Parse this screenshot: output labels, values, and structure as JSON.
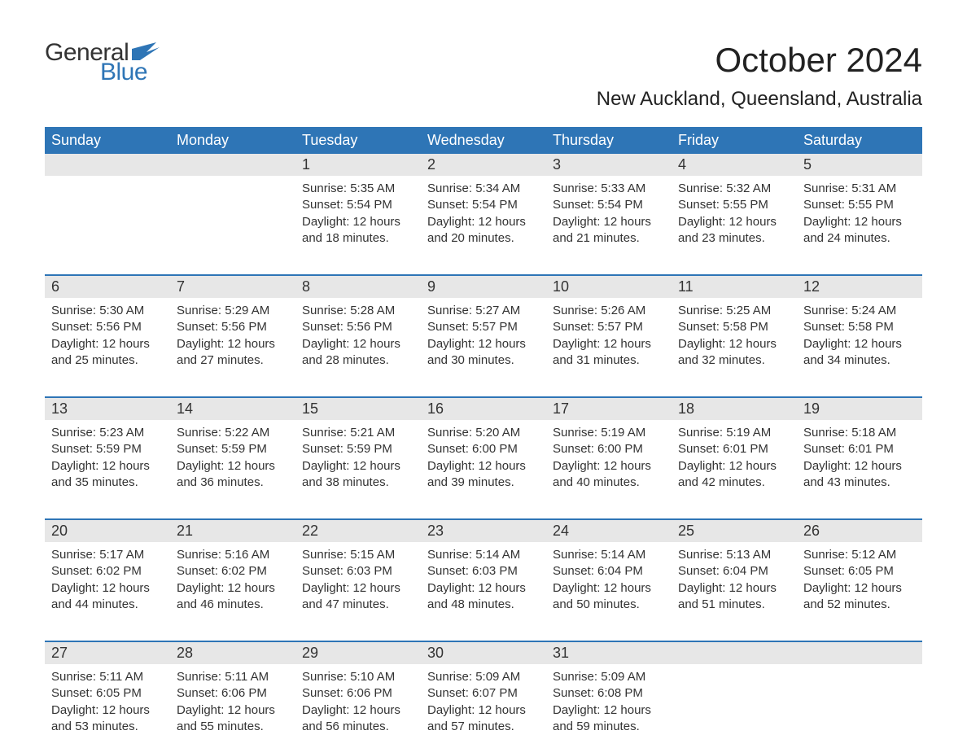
{
  "logo": {
    "word1": "General",
    "word2": "Blue",
    "word1_color": "#333333",
    "word2_color": "#2e75b6"
  },
  "title": "October 2024",
  "location": "New Auckland, Queensland, Australia",
  "colors": {
    "header_bg": "#2e75b6",
    "header_text": "#ffffff",
    "daynum_bg": "#e7e7e7",
    "week_border": "#2e75b6",
    "body_text": "#333333",
    "page_bg": "#ffffff"
  },
  "fonts": {
    "title_size_pt": 32,
    "location_size_pt": 18,
    "weekday_size_pt": 14,
    "body_size_pt": 11
  },
  "weekdays": [
    "Sunday",
    "Monday",
    "Tuesday",
    "Wednesday",
    "Thursday",
    "Friday",
    "Saturday"
  ],
  "weeks": [
    [
      {
        "empty": true
      },
      {
        "empty": true
      },
      {
        "num": "1",
        "sunrise": "Sunrise: 5:35 AM",
        "sunset": "Sunset: 5:54 PM",
        "daylight": "Daylight: 12 hours and 18 minutes."
      },
      {
        "num": "2",
        "sunrise": "Sunrise: 5:34 AM",
        "sunset": "Sunset: 5:54 PM",
        "daylight": "Daylight: 12 hours and 20 minutes."
      },
      {
        "num": "3",
        "sunrise": "Sunrise: 5:33 AM",
        "sunset": "Sunset: 5:54 PM",
        "daylight": "Daylight: 12 hours and 21 minutes."
      },
      {
        "num": "4",
        "sunrise": "Sunrise: 5:32 AM",
        "sunset": "Sunset: 5:55 PM",
        "daylight": "Daylight: 12 hours and 23 minutes."
      },
      {
        "num": "5",
        "sunrise": "Sunrise: 5:31 AM",
        "sunset": "Sunset: 5:55 PM",
        "daylight": "Daylight: 12 hours and 24 minutes."
      }
    ],
    [
      {
        "num": "6",
        "sunrise": "Sunrise: 5:30 AM",
        "sunset": "Sunset: 5:56 PM",
        "daylight": "Daylight: 12 hours and 25 minutes."
      },
      {
        "num": "7",
        "sunrise": "Sunrise: 5:29 AM",
        "sunset": "Sunset: 5:56 PM",
        "daylight": "Daylight: 12 hours and 27 minutes."
      },
      {
        "num": "8",
        "sunrise": "Sunrise: 5:28 AM",
        "sunset": "Sunset: 5:56 PM",
        "daylight": "Daylight: 12 hours and 28 minutes."
      },
      {
        "num": "9",
        "sunrise": "Sunrise: 5:27 AM",
        "sunset": "Sunset: 5:57 PM",
        "daylight": "Daylight: 12 hours and 30 minutes."
      },
      {
        "num": "10",
        "sunrise": "Sunrise: 5:26 AM",
        "sunset": "Sunset: 5:57 PM",
        "daylight": "Daylight: 12 hours and 31 minutes."
      },
      {
        "num": "11",
        "sunrise": "Sunrise: 5:25 AM",
        "sunset": "Sunset: 5:58 PM",
        "daylight": "Daylight: 12 hours and 32 minutes."
      },
      {
        "num": "12",
        "sunrise": "Sunrise: 5:24 AM",
        "sunset": "Sunset: 5:58 PM",
        "daylight": "Daylight: 12 hours and 34 minutes."
      }
    ],
    [
      {
        "num": "13",
        "sunrise": "Sunrise: 5:23 AM",
        "sunset": "Sunset: 5:59 PM",
        "daylight": "Daylight: 12 hours and 35 minutes."
      },
      {
        "num": "14",
        "sunrise": "Sunrise: 5:22 AM",
        "sunset": "Sunset: 5:59 PM",
        "daylight": "Daylight: 12 hours and 36 minutes."
      },
      {
        "num": "15",
        "sunrise": "Sunrise: 5:21 AM",
        "sunset": "Sunset: 5:59 PM",
        "daylight": "Daylight: 12 hours and 38 minutes."
      },
      {
        "num": "16",
        "sunrise": "Sunrise: 5:20 AM",
        "sunset": "Sunset: 6:00 PM",
        "daylight": "Daylight: 12 hours and 39 minutes."
      },
      {
        "num": "17",
        "sunrise": "Sunrise: 5:19 AM",
        "sunset": "Sunset: 6:00 PM",
        "daylight": "Daylight: 12 hours and 40 minutes."
      },
      {
        "num": "18",
        "sunrise": "Sunrise: 5:19 AM",
        "sunset": "Sunset: 6:01 PM",
        "daylight": "Daylight: 12 hours and 42 minutes."
      },
      {
        "num": "19",
        "sunrise": "Sunrise: 5:18 AM",
        "sunset": "Sunset: 6:01 PM",
        "daylight": "Daylight: 12 hours and 43 minutes."
      }
    ],
    [
      {
        "num": "20",
        "sunrise": "Sunrise: 5:17 AM",
        "sunset": "Sunset: 6:02 PM",
        "daylight": "Daylight: 12 hours and 44 minutes."
      },
      {
        "num": "21",
        "sunrise": "Sunrise: 5:16 AM",
        "sunset": "Sunset: 6:02 PM",
        "daylight": "Daylight: 12 hours and 46 minutes."
      },
      {
        "num": "22",
        "sunrise": "Sunrise: 5:15 AM",
        "sunset": "Sunset: 6:03 PM",
        "daylight": "Daylight: 12 hours and 47 minutes."
      },
      {
        "num": "23",
        "sunrise": "Sunrise: 5:14 AM",
        "sunset": "Sunset: 6:03 PM",
        "daylight": "Daylight: 12 hours and 48 minutes."
      },
      {
        "num": "24",
        "sunrise": "Sunrise: 5:14 AM",
        "sunset": "Sunset: 6:04 PM",
        "daylight": "Daylight: 12 hours and 50 minutes."
      },
      {
        "num": "25",
        "sunrise": "Sunrise: 5:13 AM",
        "sunset": "Sunset: 6:04 PM",
        "daylight": "Daylight: 12 hours and 51 minutes."
      },
      {
        "num": "26",
        "sunrise": "Sunrise: 5:12 AM",
        "sunset": "Sunset: 6:05 PM",
        "daylight": "Daylight: 12 hours and 52 minutes."
      }
    ],
    [
      {
        "num": "27",
        "sunrise": "Sunrise: 5:11 AM",
        "sunset": "Sunset: 6:05 PM",
        "daylight": "Daylight: 12 hours and 53 minutes."
      },
      {
        "num": "28",
        "sunrise": "Sunrise: 5:11 AM",
        "sunset": "Sunset: 6:06 PM",
        "daylight": "Daylight: 12 hours and 55 minutes."
      },
      {
        "num": "29",
        "sunrise": "Sunrise: 5:10 AM",
        "sunset": "Sunset: 6:06 PM",
        "daylight": "Daylight: 12 hours and 56 minutes."
      },
      {
        "num": "30",
        "sunrise": "Sunrise: 5:09 AM",
        "sunset": "Sunset: 6:07 PM",
        "daylight": "Daylight: 12 hours and 57 minutes."
      },
      {
        "num": "31",
        "sunrise": "Sunrise: 5:09 AM",
        "sunset": "Sunset: 6:08 PM",
        "daylight": "Daylight: 12 hours and 59 minutes."
      },
      {
        "empty": true
      },
      {
        "empty": true
      }
    ]
  ]
}
